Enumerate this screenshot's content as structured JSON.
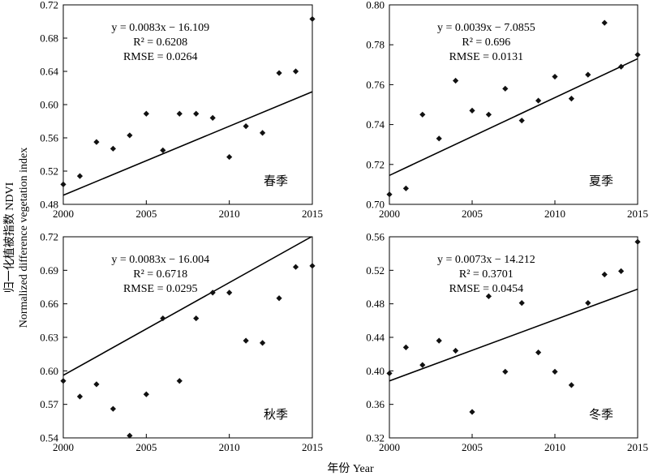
{
  "figure": {
    "ylabel_line1": "归一化植被指数 NDVI",
    "ylabel_line2": "Normalized difference vegetation index",
    "xlabel": "年份 Year"
  },
  "chart_data": [
    {
      "type": "scatter",
      "panel": "top-left",
      "season_label": "春季",
      "equation": "y = 0.0083x − 16.109",
      "r2": "R² = 0.6208",
      "rmse": "RMSE = 0.0264",
      "fit": {
        "slope": 0.0083,
        "intercept": -16.109
      },
      "xlim": [
        2000,
        2015
      ],
      "ylim": [
        0.48,
        0.72
      ],
      "xticks": [
        "2000",
        "2005",
        "2010",
        "2015"
      ],
      "yticks": [
        "0.48",
        "0.52",
        "0.56",
        "0.60",
        "0.64",
        "0.68",
        "0.72"
      ],
      "x": [
        2000,
        2001,
        2002,
        2003,
        2004,
        2005,
        2006,
        2007,
        2008,
        2009,
        2010,
        2011,
        2012,
        2013,
        2014,
        2015
      ],
      "y": [
        0.504,
        0.514,
        0.555,
        0.547,
        0.563,
        0.589,
        0.545,
        0.589,
        0.589,
        0.584,
        0.537,
        0.574,
        0.566,
        0.638,
        0.64,
        0.703
      ]
    },
    {
      "type": "scatter",
      "panel": "top-right",
      "season_label": "夏季",
      "equation": "y = 0.0039x − 7.0855",
      "r2": "R² = 0.696",
      "rmse": "RMSE = 0.0131",
      "fit": {
        "slope": 0.0039,
        "intercept": -7.0855
      },
      "xlim": [
        2000,
        2015
      ],
      "ylim": [
        0.7,
        0.8
      ],
      "xticks": [
        "2000",
        "2005",
        "2010",
        "2015"
      ],
      "yticks": [
        "0.70",
        "0.72",
        "0.74",
        "0.76",
        "0.78",
        "0.80"
      ],
      "x": [
        2000,
        2001,
        2002,
        2003,
        2004,
        2005,
        2006,
        2007,
        2008,
        2009,
        2010,
        2011,
        2012,
        2013,
        2014,
        2015
      ],
      "y": [
        0.705,
        0.708,
        0.745,
        0.733,
        0.762,
        0.747,
        0.745,
        0.758,
        0.742,
        0.752,
        0.764,
        0.753,
        0.765,
        0.791,
        0.769,
        0.775
      ]
    },
    {
      "type": "scatter",
      "panel": "bottom-left",
      "season_label": "秋季",
      "equation": "y = 0.0083x − 16.004",
      "r2": "R² = 0.6718",
      "rmse": "RMSE = 0.0295",
      "fit": {
        "slope": 0.0083,
        "intercept": -16.004
      },
      "xlim": [
        2000,
        2015
      ],
      "ylim": [
        0.54,
        0.72
      ],
      "xticks": [
        "2000",
        "2005",
        "2010",
        "2015"
      ],
      "yticks": [
        "0.54",
        "0.57",
        "0.60",
        "0.63",
        "0.66",
        "0.69",
        "0.72"
      ],
      "x": [
        2000,
        2001,
        2002,
        2003,
        2004,
        2005,
        2006,
        2007,
        2008,
        2009,
        2010,
        2011,
        2012,
        2013,
        2014,
        2015
      ],
      "y": [
        0.591,
        0.577,
        0.588,
        0.566,
        0.542,
        0.579,
        0.647,
        0.591,
        0.647,
        0.67,
        0.67,
        0.627,
        0.625,
        0.665,
        0.693,
        0.694
      ]
    },
    {
      "type": "scatter",
      "panel": "bottom-right",
      "season_label": "冬季",
      "equation": "y = 0.0073x − 14.212",
      "r2": "R² = 0.3701",
      "rmse": "RMSE = 0.0454",
      "fit": {
        "slope": 0.0073,
        "intercept": -14.212
      },
      "xlim": [
        2000,
        2015
      ],
      "ylim": [
        0.32,
        0.56
      ],
      "xticks": [
        "2000",
        "2005",
        "2010",
        "2015"
      ],
      "yticks": [
        "0.32",
        "0.36",
        "0.40",
        "0.44",
        "0.48",
        "0.52",
        "0.56"
      ],
      "x": [
        2000,
        2001,
        2002,
        2003,
        2004,
        2005,
        2006,
        2007,
        2008,
        2009,
        2010,
        2011,
        2012,
        2013,
        2014,
        2015
      ],
      "y": [
        0.397,
        0.428,
        0.407,
        0.436,
        0.424,
        0.351,
        0.489,
        0.399,
        0.481,
        0.422,
        0.399,
        0.383,
        0.481,
        0.515,
        0.519,
        0.554
      ]
    }
  ]
}
